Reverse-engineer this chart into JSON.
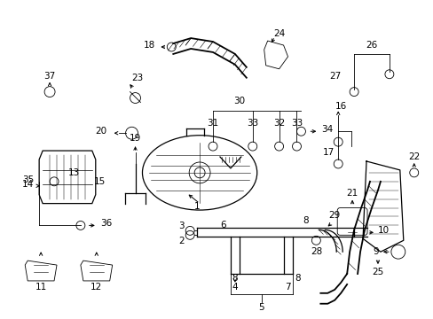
{
  "bg_color": "#ffffff",
  "figsize": [
    4.89,
    3.6
  ],
  "dpi": 100,
  "lw_thin": 0.6,
  "lw_med": 0.9,
  "lw_thick": 1.3,
  "fs": 7.5
}
